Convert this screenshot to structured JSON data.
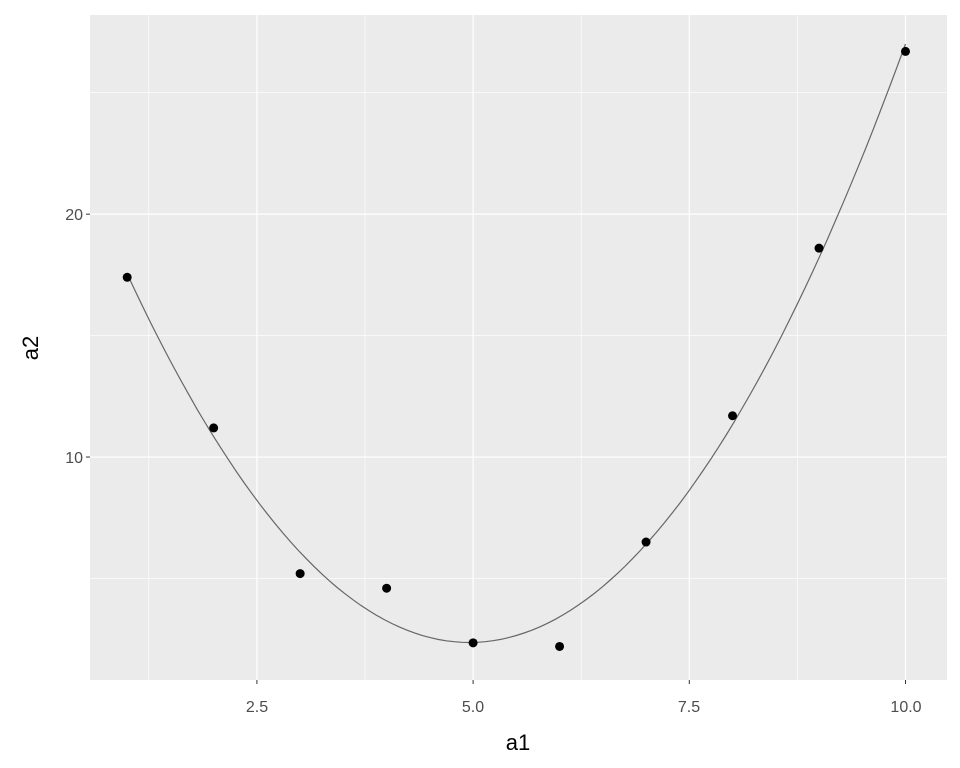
{
  "chart_data": {
    "type": "scatter",
    "title": "",
    "xlabel": "a1",
    "ylabel": "a2",
    "xlim": [
      0.57,
      10.48
    ],
    "ylim": [
      0.82,
      28.2
    ],
    "x_ticks": [
      "2.5",
      "5.0",
      "7.5",
      "10.0"
    ],
    "y_ticks": [
      "10",
      "20"
    ],
    "grid": true,
    "background": "#ebebeb",
    "point_color": "#000000",
    "smooth_color": "#666666",
    "points": {
      "x": [
        1,
        2,
        3,
        4,
        5,
        6,
        7,
        8,
        9,
        10
      ],
      "y": [
        17.4,
        11.2,
        5.2,
        4.6,
        2.35,
        2.2,
        6.5,
        11.7,
        18.6,
        26.7
      ]
    },
    "smooth_line": true
  }
}
